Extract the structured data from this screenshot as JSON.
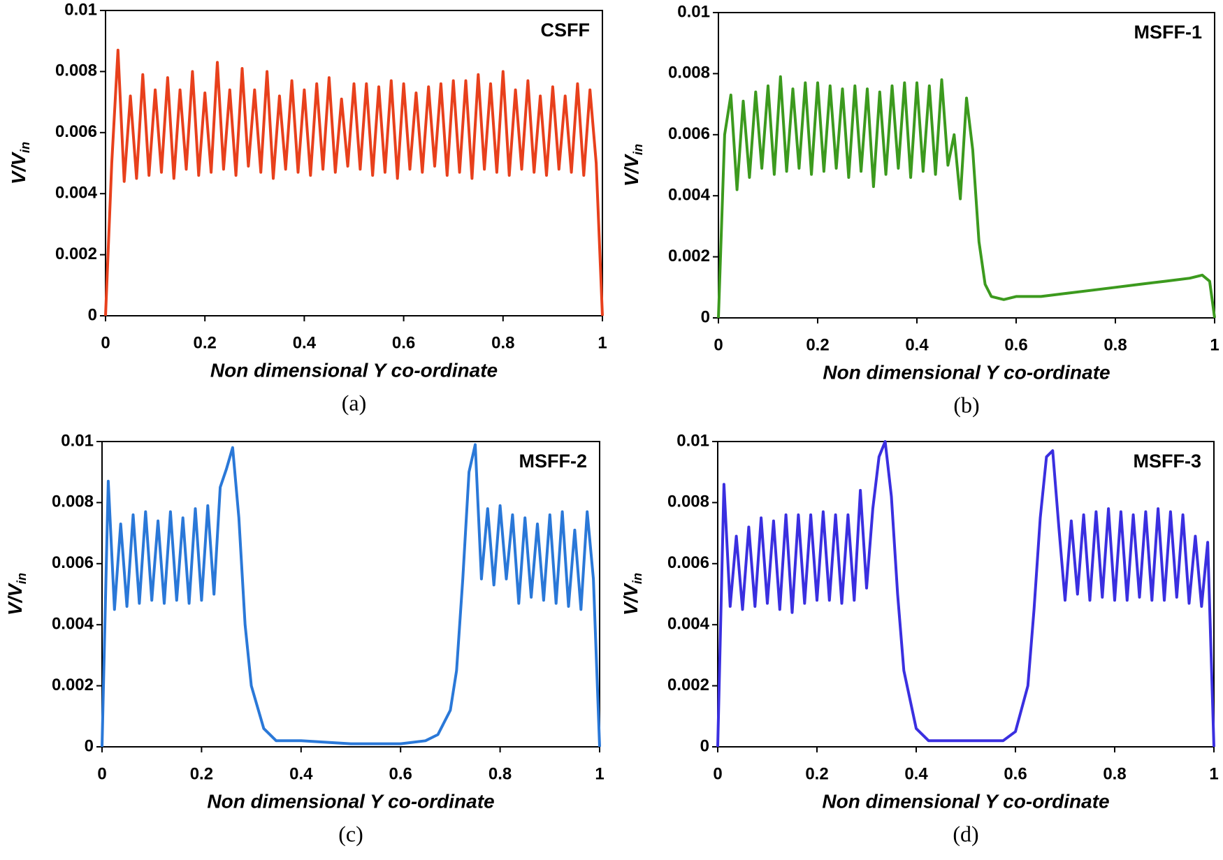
{
  "chart_data": [
    {
      "type": "line",
      "title": "CSFF",
      "panel": "(a)",
      "xlabel": "Non dimensional Y co-ordinate",
      "ylabel": "V/V",
      "ylabel_subscript": "in",
      "xlim": [
        0,
        1
      ],
      "ylim": [
        0,
        0.01
      ],
      "xticks": [
        0,
        0.2,
        0.4,
        0.6,
        0.8,
        1
      ],
      "yticks": [
        0,
        0.002,
        0.004,
        0.006,
        0.008,
        0.01
      ],
      "x": [
        0,
        0.0125,
        0.025,
        0.0375,
        0.05,
        0.0625,
        0.075,
        0.0875,
        0.1,
        0.1125,
        0.125,
        0.1375,
        0.15,
        0.1625,
        0.175,
        0.1875,
        0.2,
        0.2125,
        0.225,
        0.2375,
        0.25,
        0.2625,
        0.275,
        0.2875,
        0.3,
        0.3125,
        0.325,
        0.3375,
        0.35,
        0.3625,
        0.375,
        0.3875,
        0.4,
        0.4125,
        0.425,
        0.4375,
        0.45,
        0.4625,
        0.475,
        0.4875,
        0.5,
        0.5125,
        0.525,
        0.5375,
        0.55,
        0.5625,
        0.575,
        0.5875,
        0.6,
        0.6125,
        0.625,
        0.6375,
        0.65,
        0.6625,
        0.675,
        0.6875,
        0.7,
        0.7125,
        0.725,
        0.7375,
        0.75,
        0.7625,
        0.775,
        0.7875,
        0.8,
        0.8125,
        0.825,
        0.8375,
        0.85,
        0.8625,
        0.875,
        0.8875,
        0.9,
        0.9125,
        0.925,
        0.9375,
        0.95,
        0.9625,
        0.975,
        0.9875,
        1
      ],
      "series": [
        {
          "color": "#e8401c",
          "values": [
            0,
            0.005,
            0.0087,
            0.0044,
            0.0072,
            0.0045,
            0.0079,
            0.0046,
            0.0074,
            0.0047,
            0.0078,
            0.0045,
            0.0074,
            0.0048,
            0.008,
            0.0046,
            0.0073,
            0.0047,
            0.0083,
            0.0048,
            0.0074,
            0.0046,
            0.0081,
            0.0049,
            0.0074,
            0.0047,
            0.008,
            0.0045,
            0.0072,
            0.0048,
            0.0077,
            0.0047,
            0.0074,
            0.0046,
            0.0076,
            0.0048,
            0.0078,
            0.0047,
            0.0071,
            0.0049,
            0.0076,
            0.0048,
            0.0076,
            0.0046,
            0.0075,
            0.0047,
            0.0077,
            0.0045,
            0.0076,
            0.0048,
            0.0073,
            0.0047,
            0.0075,
            0.0049,
            0.0076,
            0.0046,
            0.0077,
            0.0047,
            0.0077,
            0.0045,
            0.0079,
            0.0048,
            0.0076,
            0.0047,
            0.008,
            0.0046,
            0.0074,
            0.0048,
            0.0077,
            0.0047,
            0.0072,
            0.0046,
            0.0075,
            0.0048,
            0.0072,
            0.0047,
            0.0076,
            0.0046,
            0.0074,
            0.005,
            0
          ]
        }
      ]
    },
    {
      "type": "line",
      "title": "MSFF-1",
      "panel": "(b)",
      "xlabel": "Non dimensional Y co-ordinate",
      "ylabel": "V/V",
      "ylabel_subscript": "in",
      "xlim": [
        0,
        1
      ],
      "ylim": [
        0,
        0.01
      ],
      "xticks": [
        0,
        0.2,
        0.4,
        0.6,
        0.8,
        1
      ],
      "yticks": [
        0,
        0.002,
        0.004,
        0.006,
        0.008,
        0.01
      ],
      "x": [
        0,
        0.0125,
        0.025,
        0.0375,
        0.05,
        0.0625,
        0.075,
        0.0875,
        0.1,
        0.1125,
        0.125,
        0.1375,
        0.15,
        0.1625,
        0.175,
        0.1875,
        0.2,
        0.2125,
        0.225,
        0.2375,
        0.25,
        0.2625,
        0.275,
        0.2875,
        0.3,
        0.3125,
        0.325,
        0.3375,
        0.35,
        0.3625,
        0.375,
        0.3875,
        0.4,
        0.4125,
        0.425,
        0.4375,
        0.45,
        0.4625,
        0.475,
        0.4875,
        0.5,
        0.5125,
        0.525,
        0.5375,
        0.55,
        0.575,
        0.6,
        0.65,
        0.7,
        0.75,
        0.8,
        0.85,
        0.9,
        0.95,
        0.975,
        0.99,
        1
      ],
      "series": [
        {
          "color": "#3c9a1e",
          "values": [
            0,
            0.006,
            0.0073,
            0.0042,
            0.0071,
            0.0046,
            0.0074,
            0.0049,
            0.0076,
            0.0047,
            0.0079,
            0.0048,
            0.0075,
            0.0049,
            0.0077,
            0.0047,
            0.0077,
            0.0048,
            0.0076,
            0.0049,
            0.0075,
            0.0046,
            0.0076,
            0.0048,
            0.0075,
            0.0043,
            0.0074,
            0.0047,
            0.0076,
            0.0049,
            0.0077,
            0.0046,
            0.0077,
            0.0048,
            0.0076,
            0.0047,
            0.0078,
            0.005,
            0.006,
            0.0039,
            0.0072,
            0.0055,
            0.0025,
            0.0011,
            0.0007,
            0.0006,
            0.0007,
            0.0007,
            0.0008,
            0.0009,
            0.001,
            0.0011,
            0.0012,
            0.0013,
            0.0014,
            0.0012,
            0
          ]
        }
      ]
    },
    {
      "type": "line",
      "title": "MSFF-2",
      "panel": "(c)",
      "xlabel": "Non dimensional Y co-ordinate",
      "ylabel": "V/V",
      "ylabel_subscript": "in",
      "xlim": [
        0,
        1
      ],
      "ylim": [
        0,
        0.01
      ],
      "xticks": [
        0,
        0.2,
        0.4,
        0.6,
        0.8,
        1
      ],
      "yticks": [
        0,
        0.002,
        0.004,
        0.006,
        0.008,
        0.01
      ],
      "x": [
        0,
        0.0125,
        0.025,
        0.0375,
        0.05,
        0.0625,
        0.075,
        0.0875,
        0.1,
        0.1125,
        0.125,
        0.1375,
        0.15,
        0.1625,
        0.175,
        0.1875,
        0.2,
        0.2125,
        0.225,
        0.2375,
        0.25,
        0.2625,
        0.275,
        0.2875,
        0.3,
        0.325,
        0.35,
        0.4,
        0.5,
        0.6,
        0.65,
        0.675,
        0.7,
        0.7125,
        0.725,
        0.7375,
        0.75,
        0.7625,
        0.775,
        0.7875,
        0.8,
        0.8125,
        0.825,
        0.8375,
        0.85,
        0.8625,
        0.875,
        0.8875,
        0.9,
        0.9125,
        0.925,
        0.9375,
        0.95,
        0.9625,
        0.975,
        0.9875,
        1
      ],
      "series": [
        {
          "color": "#2a78d8",
          "values": [
            0,
            0.0087,
            0.0045,
            0.0073,
            0.0046,
            0.0076,
            0.0047,
            0.0077,
            0.0048,
            0.0074,
            0.0047,
            0.0077,
            0.0048,
            0.0075,
            0.0047,
            0.0078,
            0.0048,
            0.0079,
            0.005,
            0.0085,
            0.0091,
            0.0098,
            0.0075,
            0.004,
            0.002,
            0.0006,
            0.0002,
            0.0002,
            0.0001,
            0.0001,
            0.0002,
            0.0004,
            0.0012,
            0.0025,
            0.0055,
            0.009,
            0.0099,
            0.0055,
            0.0078,
            0.0053,
            0.0079,
            0.0055,
            0.0076,
            0.0047,
            0.0075,
            0.0049,
            0.0073,
            0.0048,
            0.0076,
            0.0047,
            0.0077,
            0.0046,
            0.0071,
            0.0045,
            0.0077,
            0.0055,
            0
          ]
        }
      ]
    },
    {
      "type": "line",
      "title": "MSFF-3",
      "panel": "(d)",
      "xlabel": "Non dimensional Y co-ordinate",
      "ylabel": "V/V",
      "ylabel_subscript": "in",
      "xlim": [
        0,
        1
      ],
      "ylim": [
        0,
        0.01
      ],
      "xticks": [
        0,
        0.2,
        0.4,
        0.6,
        0.8,
        1
      ],
      "yticks": [
        0,
        0.002,
        0.004,
        0.006,
        0.008,
        0.01
      ],
      "x": [
        0,
        0.0125,
        0.025,
        0.0375,
        0.05,
        0.0625,
        0.075,
        0.0875,
        0.1,
        0.1125,
        0.125,
        0.1375,
        0.15,
        0.1625,
        0.175,
        0.1875,
        0.2,
        0.2125,
        0.225,
        0.2375,
        0.25,
        0.2625,
        0.275,
        0.2875,
        0.3,
        0.3125,
        0.325,
        0.3375,
        0.35,
        0.3625,
        0.375,
        0.4,
        0.425,
        0.5,
        0.575,
        0.6,
        0.625,
        0.6375,
        0.65,
        0.6625,
        0.675,
        0.6875,
        0.7,
        0.7125,
        0.725,
        0.7375,
        0.75,
        0.7625,
        0.775,
        0.7875,
        0.8,
        0.8125,
        0.825,
        0.8375,
        0.85,
        0.8625,
        0.875,
        0.8875,
        0.9,
        0.9125,
        0.925,
        0.9375,
        0.95,
        0.9625,
        0.975,
        0.9875,
        1
      ],
      "series": [
        {
          "color": "#3a2fe0",
          "values": [
            0,
            0.0086,
            0.0046,
            0.0069,
            0.0045,
            0.0072,
            0.0046,
            0.0075,
            0.0047,
            0.0074,
            0.0045,
            0.0076,
            0.0044,
            0.0076,
            0.0047,
            0.0076,
            0.0048,
            0.0077,
            0.0048,
            0.0076,
            0.0047,
            0.0076,
            0.0048,
            0.0084,
            0.0052,
            0.0078,
            0.0095,
            0.01,
            0.0082,
            0.005,
            0.0025,
            0.0006,
            0.0002,
            0.0002,
            0.0002,
            0.0005,
            0.002,
            0.0045,
            0.0075,
            0.0095,
            0.0097,
            0.0072,
            0.0048,
            0.0074,
            0.005,
            0.0076,
            0.0048,
            0.0077,
            0.0049,
            0.0078,
            0.0048,
            0.0077,
            0.0048,
            0.0076,
            0.0049,
            0.0077,
            0.0048,
            0.0078,
            0.0048,
            0.0077,
            0.0049,
            0.0076,
            0.0047,
            0.0069,
            0.0046,
            0.0067,
            0
          ]
        }
      ]
    }
  ]
}
